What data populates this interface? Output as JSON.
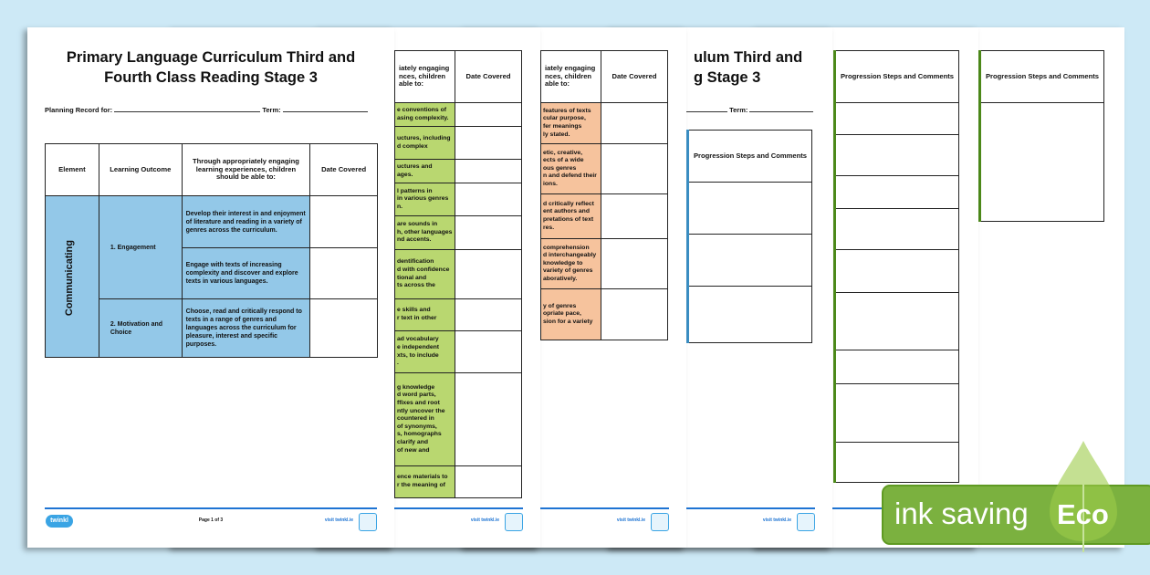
{
  "document": {
    "title_line1": "Primary Language Curriculum Third and",
    "title_line2": "Fourth Class Reading Stage 3",
    "planning_label": "Planning Record for:",
    "term_label": "Term:",
    "title_frag1": "ulum Third and",
    "title_frag2": "g Stage 3"
  },
  "table": {
    "headers": [
      "Element",
      "Learning Outcome",
      "Through appropriately engaging learning experiences, children should be able to:",
      "Date Covered"
    ],
    "element": "Communicating",
    "outcomes": [
      "1.   Engagement",
      "2.   Motivation and Choice"
    ],
    "objectives": [
      "Develop their interest in and enjoyment of literature and reading in a variety of genres across the curriculum.",
      "Engage with texts of increasing complexity and discover and explore texts in various languages.",
      "Choose, read and critically respond to texts in a range of genres and languages across the curriculum for pleasure, interest and specific purposes."
    ]
  },
  "page2": {
    "header_frag": "iately engaging\nnces, children\nable to:",
    "date_header": "Date Covered",
    "rows": [
      "e conventions of\nasing complexity.",
      "uctures, including\nd complex",
      "uctures and\nages.",
      "l patterns in\nin various genres\nn.",
      "are sounds in\nh, other languages\nnd accents.",
      "dentification\nd with confidence\ntional and\nts across the",
      "e skills and\nr text in other",
      "ad vocabulary\ne independent\nxts, to include\n.",
      "g knowledge\nd word parts,\nffixes and root\nntly uncover the\ncountered in\nof synonyms,\ns, homographs\nclarify and\nof new and",
      "ence materials to\nr the meaning of"
    ]
  },
  "page3": {
    "header_frag": "iately engaging\nnces, children\nable to:",
    "date_header": "Date Covered",
    "rows": [
      "features of texts\ncular purpose,\nfer meanings\nly stated.",
      "etic, creative,\nects of a wide\nous genres\nn and defend their\nions.",
      "d critically reflect\nent authors and\npretations of text\nres.",
      "comprehension\nd interchangeably\nknowledge to\nvariety of genres\naboratively.",
      "y of genres\nopriate pace,\nsion for a variety"
    ]
  },
  "progression_header": "Progression Steps and Comments",
  "footer": {
    "logo": "twinkl",
    "page_label": "Page 1 of 3",
    "visit": "visit twinkl.ie"
  },
  "eco_badge": {
    "text": "ink saving",
    "label": "Eco"
  },
  "colors": {
    "background": "#cde9f6",
    "communicating_blue": "#93c8e8",
    "green": "#b9d770",
    "orange": "#f6c39d",
    "eco_green": "#7bb13f",
    "footer_line": "#1e74d3"
  }
}
